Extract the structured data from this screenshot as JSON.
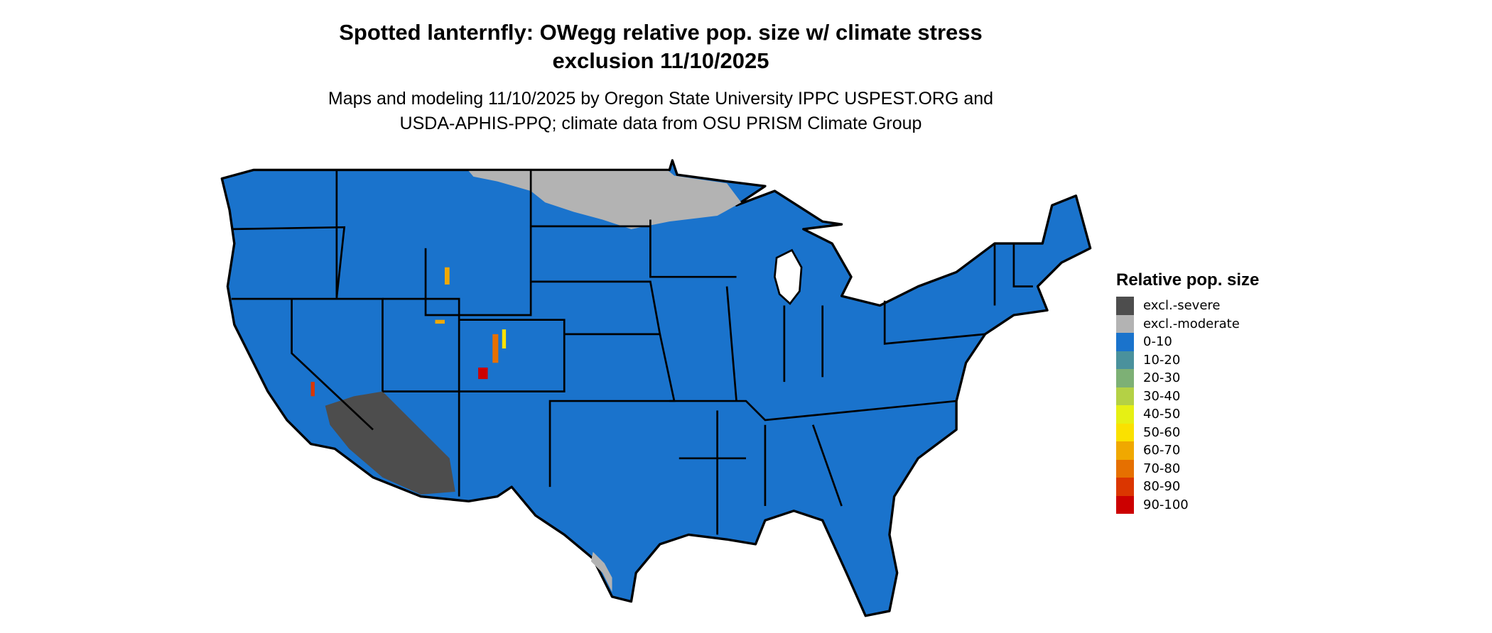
{
  "title_line1": "Spotted lanternfly: OWegg relative pop. size w/ climate stress",
  "title_line2": "exclusion 11/10/2025",
  "subtitle_line1": "Maps and modeling 11/10/2025 by Oregon State University IPPC USPEST.ORG and",
  "subtitle_line2": "USDA-APHIS-PPQ; climate data from OSU PRISM Climate Group",
  "chart_data": {
    "type": "heatmap",
    "legend": {
      "title": "Relative pop. size",
      "placement": "right",
      "items": [
        {
          "label": "excl.-severe",
          "color": "#4d4d4d"
        },
        {
          "label": "excl.-moderate",
          "color": "#b3b3b3"
        },
        {
          "label": "0-10",
          "color": "#1a73cc"
        },
        {
          "label": "10-20",
          "color": "#4a919c"
        },
        {
          "label": "20-30",
          "color": "#7db075"
        },
        {
          "label": "30-40",
          "color": "#b4d145"
        },
        {
          "label": "40-50",
          "color": "#e6f014"
        },
        {
          "label": "50-60",
          "color": "#fae100"
        },
        {
          "label": "60-70",
          "color": "#f0a800"
        },
        {
          "label": "70-80",
          "color": "#e67000"
        },
        {
          "label": "80-90",
          "color": "#db3600"
        },
        {
          "label": "90-100",
          "color": "#cc0000"
        }
      ]
    }
  }
}
